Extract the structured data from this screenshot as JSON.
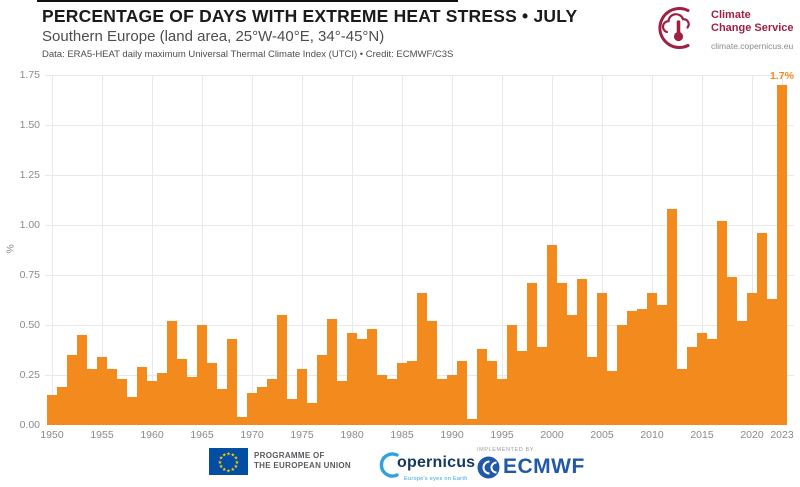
{
  "chart_data": {
    "type": "bar",
    "title": "PERCENTAGE OF DAYS WITH EXTREME HEAT STRESS • JULY",
    "subtitle": "Southern Europe (land area, 25°W-40°E, 34°-45°N)",
    "source_credit": "Data: ERA5-HEAT daily maximum Universal Thermal Climate Index (UTCI) • Credit: ECMWF/C3S",
    "xlabel": "",
    "ylabel": "%",
    "ylim": [
      0,
      1.75
    ],
    "ytick_labels": [
      "0.00",
      "0.25",
      "0.50",
      "0.75",
      "1.00",
      "1.25",
      "1.50",
      "1.75"
    ],
    "xtick_years": [
      1950,
      1955,
      1960,
      1965,
      1970,
      1975,
      1980,
      1985,
      1990,
      1995,
      2000,
      2005,
      2010,
      2015,
      2020,
      2023
    ],
    "grid": true,
    "legend": "none",
    "bar_color": "#F28A1E",
    "years": [
      1950,
      1951,
      1952,
      1953,
      1954,
      1955,
      1956,
      1957,
      1958,
      1959,
      1960,
      1961,
      1962,
      1963,
      1964,
      1965,
      1966,
      1967,
      1968,
      1969,
      1970,
      1971,
      1972,
      1973,
      1974,
      1975,
      1976,
      1977,
      1978,
      1979,
      1980,
      1981,
      1982,
      1983,
      1984,
      1985,
      1986,
      1987,
      1988,
      1989,
      1990,
      1991,
      1992,
      1993,
      1994,
      1995,
      1996,
      1997,
      1998,
      1999,
      2000,
      2001,
      2002,
      2003,
      2004,
      2005,
      2006,
      2007,
      2008,
      2009,
      2010,
      2011,
      2012,
      2013,
      2014,
      2015,
      2016,
      2017,
      2018,
      2019,
      2020,
      2021,
      2022,
      2023
    ],
    "values": [
      0.15,
      0.19,
      0.35,
      0.45,
      0.28,
      0.34,
      0.28,
      0.23,
      0.14,
      0.29,
      0.22,
      0.26,
      0.52,
      0.33,
      0.24,
      0.5,
      0.31,
      0.18,
      0.43,
      0.04,
      0.16,
      0.19,
      0.23,
      0.55,
      0.13,
      0.28,
      0.11,
      0.35,
      0.53,
      0.22,
      0.46,
      0.43,
      0.48,
      0.25,
      0.23,
      0.31,
      0.32,
      0.66,
      0.52,
      0.23,
      0.25,
      0.32,
      0.03,
      0.38,
      0.32,
      0.23,
      0.5,
      0.37,
      0.71,
      0.39,
      0.9,
      0.71,
      0.55,
      0.73,
      0.34,
      0.66,
      0.27,
      0.5,
      0.57,
      0.58,
      0.66,
      0.6,
      1.08,
      0.28,
      0.39,
      0.46,
      0.43,
      1.02,
      0.74,
      0.52,
      0.66,
      0.96,
      0.63,
      1.7
    ],
    "annotation": {
      "year": 2023,
      "text": "1.7%"
    }
  },
  "logo": {
    "line1": "Climate",
    "line2": "Change Service",
    "url": "climate.copernicus.eu",
    "brand_color": "#9E2142"
  },
  "footer": {
    "eu_line1": "PROGRAMME OF",
    "eu_line2": "THE EUROPEAN UNION",
    "copernicus_wordmark": "opernicus",
    "copernicus_tagline": "Europe's eyes on Earth",
    "implemented_by": "IMPLEMENTED BY",
    "ecmwf_wordmark": "ECMWF"
  }
}
